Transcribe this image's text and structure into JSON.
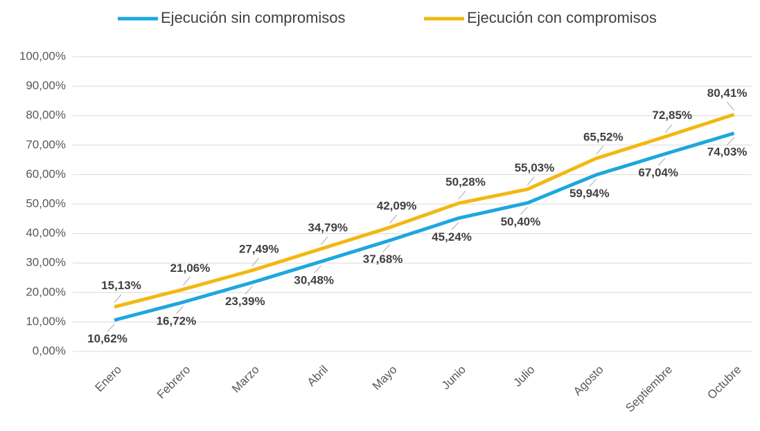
{
  "chart_data": {
    "type": "line",
    "categories": [
      "Enero",
      "Febrero",
      "Marzo",
      "Abril",
      "Mayo",
      "Junio",
      "Julio",
      "Agosto",
      "Septiembre",
      "Octubre"
    ],
    "series": [
      {
        "name": "Ejecución sin compromisos",
        "color": "#1ea7dd",
        "values": [
          10.62,
          16.72,
          23.39,
          30.48,
          37.68,
          45.24,
          50.4,
          59.94,
          67.04,
          74.03
        ],
        "value_labels": [
          "10,62%",
          "16,72%",
          "23,39%",
          "30,48%",
          "37,68%",
          "45,24%",
          "50,40%",
          "59,94%",
          "67,04%",
          "74,03%"
        ]
      },
      {
        "name": "Ejecución con compromisos",
        "color": "#f2b812",
        "values": [
          15.13,
          21.06,
          27.49,
          34.79,
          42.09,
          50.28,
          55.03,
          65.52,
          72.85,
          80.41
        ],
        "value_labels": [
          "15,13%",
          "21,06%",
          "27,49%",
          "34,79%",
          "42,09%",
          "50,28%",
          "55,03%",
          "65,52%",
          "72,85%",
          "80,41%"
        ]
      }
    ],
    "ylim": [
      0,
      100
    ],
    "yticks": [
      {
        "value": 0,
        "label": "0,00%"
      },
      {
        "value": 10,
        "label": "10,00%"
      },
      {
        "value": 20,
        "label": "20,00%"
      },
      {
        "value": 30,
        "label": "30,00%"
      },
      {
        "value": 40,
        "label": "40,00%"
      },
      {
        "value": 50,
        "label": "50,00%"
      },
      {
        "value": 60,
        "label": "60,00%"
      },
      {
        "value": 70,
        "label": "70,00%"
      },
      {
        "value": 80,
        "label": "80,00%"
      },
      {
        "value": 90,
        "label": "90,00%"
      },
      {
        "value": 100,
        "label": "100,00%"
      }
    ],
    "grid": true,
    "legend": "top"
  }
}
